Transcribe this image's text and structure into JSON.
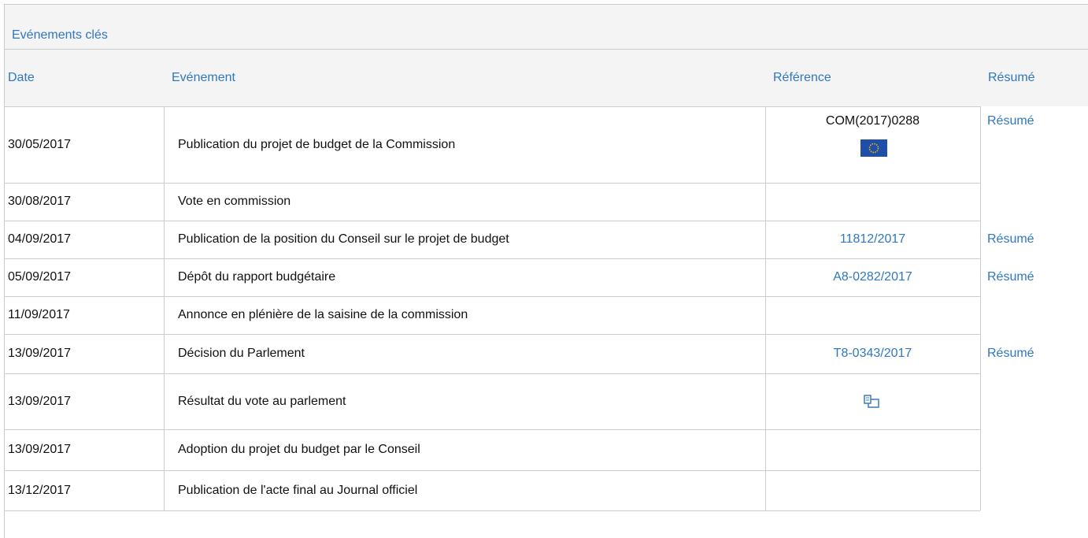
{
  "header": {
    "title": "Evénements clés"
  },
  "table": {
    "columns": [
      "Date",
      "Evénement",
      "Référence",
      "Résumé"
    ],
    "rows": [
      {
        "date": "30/05/2017",
        "event": "Publication du projet de budget de la Commission",
        "reference": "COM(2017)0288",
        "summary": "Résumé"
      },
      {
        "date": "30/08/2017",
        "event": "Vote en commission"
      },
      {
        "date": "04/09/2017",
        "event": "Publication de la position du Conseil sur le projet de budget",
        "reference": "11812/2017",
        "summary": "Résumé"
      },
      {
        "date": "05/09/2017",
        "event": "Dépôt du rapport budgétaire",
        "reference": "A8-0282/2017",
        "summary": "Résumé"
      },
      {
        "date": "11/09/2017",
        "event": "Annonce en plénière de la saisine de la commission"
      },
      {
        "date": "13/09/2017",
        "event": "Décision du Parlement",
        "reference": "T8-0343/2017",
        "summary": "Résumé"
      },
      {
        "date": "13/09/2017",
        "event": "Résultat du vote au parlement"
      },
      {
        "date": "13/09/2017",
        "event": "Adoption du projet du budget par le Conseil"
      },
      {
        "date": "13/12/2017",
        "event": "Publication de l'acte final au Journal officiel"
      }
    ]
  }
}
